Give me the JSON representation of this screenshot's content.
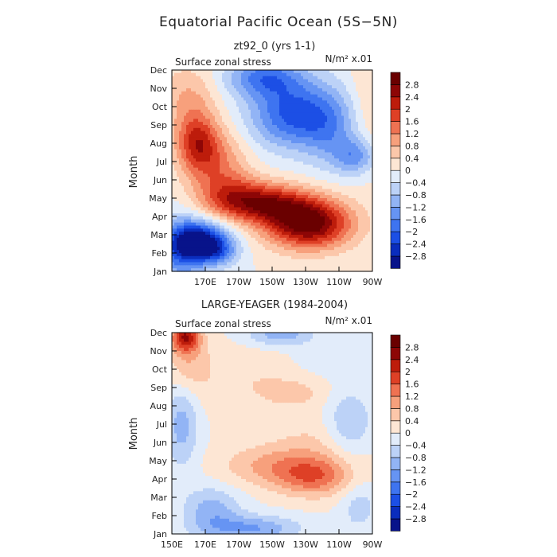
{
  "figure": {
    "title": "Equatorial Pacific Ocean (5S−5N)"
  },
  "chart_data": [
    {
      "type": "heatmap",
      "panel_title": "zt92_0 (yrs 1-1)",
      "variable_label": "Surface zonal stress",
      "units_label": "N/m² x.01",
      "ylabel": "Month",
      "xlim": [
        150,
        270
      ],
      "ylim": [
        1,
        12
      ],
      "x_ticks": [
        {
          "value": 170,
          "label": "170E"
        },
        {
          "value": 190,
          "label": "170W"
        },
        {
          "value": 210,
          "label": "150W"
        },
        {
          "value": 230,
          "label": "130W"
        },
        {
          "value": 250,
          "label": "110W"
        },
        {
          "value": 270,
          "label": "90W"
        }
      ],
      "y_ticks": [
        "Jan",
        "Feb",
        "Mar",
        "Apr",
        "May",
        "Jun",
        "Jul",
        "Aug",
        "Sep",
        "Oct",
        "Nov",
        "Dec"
      ],
      "features": [
        {
          "lon": 168,
          "month": 2.6,
          "amp": -3.0,
          "sx": 12,
          "sy": 0.75
        },
        {
          "lon": 155,
          "month": 2.2,
          "amp": -1.6,
          "sx": 10,
          "sy": 1.2
        },
        {
          "lon": 178,
          "month": 2.0,
          "amp": -0.9,
          "sx": 8,
          "sy": 0.5
        },
        {
          "lon": 232,
          "month": 3.6,
          "amp": 3.1,
          "sx": 18,
          "sy": 0.95
        },
        {
          "lon": 206,
          "month": 4.7,
          "amp": 2.2,
          "sx": 18,
          "sy": 0.75
        },
        {
          "lon": 184,
          "month": 5.2,
          "amp": 1.3,
          "sx": 14,
          "sy": 0.9
        },
        {
          "lon": 165,
          "month": 8.0,
          "amp": 1.9,
          "sx": 9,
          "sy": 1.15
        },
        {
          "lon": 178,
          "month": 7.1,
          "amp": 1.0,
          "sx": 12,
          "sy": 1.2
        },
        {
          "lon": 160,
          "month": 10.5,
          "amp": 0.8,
          "sx": 12,
          "sy": 1.3
        },
        {
          "lon": 222,
          "month": 9.6,
          "amp": -2.1,
          "sx": 18,
          "sy": 1.3
        },
        {
          "lon": 205,
          "month": 11.6,
          "amp": -1.6,
          "sx": 16,
          "sy": 0.75
        },
        {
          "lon": 260,
          "month": 7.3,
          "amp": -1.3,
          "sx": 9,
          "sy": 0.7
        },
        {
          "lon": 245,
          "month": 8.8,
          "amp": -1.0,
          "sx": 12,
          "sy": 1.5
        },
        {
          "lon": 268,
          "month": 10.5,
          "amp": 0.45,
          "sx": 8,
          "sy": 2.5
        }
      ]
    },
    {
      "type": "heatmap",
      "panel_title": "LARGE-YEAGER (1984-2004)",
      "variable_label": "Surface zonal stress",
      "units_label": "N/m² x.01",
      "ylabel": "Month",
      "xlim": [
        150,
        270
      ],
      "ylim": [
        1,
        12
      ],
      "x_ticks": [
        {
          "value": 150,
          "label": "150E"
        },
        {
          "value": 170,
          "label": "170E"
        },
        {
          "value": 190,
          "label": "170W"
        },
        {
          "value": 210,
          "label": "150W"
        },
        {
          "value": 230,
          "label": "130W"
        },
        {
          "value": 250,
          "label": "110W"
        },
        {
          "value": 270,
          "label": "90W"
        }
      ],
      "y_ticks": [
        "Jan",
        "Feb",
        "Mar",
        "Apr",
        "May",
        "Jun",
        "Jul",
        "Aug",
        "Sep",
        "Oct",
        "Nov",
        "Dec"
      ],
      "features": [
        {
          "lon": 158,
          "month": 11.8,
          "amp": 2.2,
          "sx": 6,
          "sy": 0.6
        },
        {
          "lon": 160,
          "month": 10.3,
          "amp": 0.7,
          "sx": 9,
          "sy": 1.2
        },
        {
          "lon": 236,
          "month": 4.1,
          "amp": 1.3,
          "sx": 16,
          "sy": 0.75
        },
        {
          "lon": 212,
          "month": 4.7,
          "amp": 0.9,
          "sx": 22,
          "sy": 0.8
        },
        {
          "lon": 240,
          "month": 6.0,
          "amp": 0.4,
          "sx": 20,
          "sy": 1.0
        },
        {
          "lon": 205,
          "month": 9.3,
          "amp": 0.4,
          "sx": 28,
          "sy": 1.4
        },
        {
          "lon": 225,
          "month": 8.7,
          "amp": 0.3,
          "sx": 12,
          "sy": 0.5
        },
        {
          "lon": 156,
          "month": 7.0,
          "amp": -1.0,
          "sx": 7,
          "sy": 1.7
        },
        {
          "lon": 174,
          "month": 2.3,
          "amp": -1.0,
          "sx": 12,
          "sy": 0.9
        },
        {
          "lon": 198,
          "month": 1.3,
          "amp": -1.2,
          "sx": 20,
          "sy": 0.5
        },
        {
          "lon": 215,
          "month": 11.9,
          "amp": -1.1,
          "sx": 14,
          "sy": 0.45
        },
        {
          "lon": 256,
          "month": 7.0,
          "amp": -0.9,
          "sx": 10,
          "sy": 1.3
        },
        {
          "lon": 262,
          "month": 2.5,
          "amp": -0.6,
          "sx": 8,
          "sy": 1.0
        },
        {
          "lon": 240,
          "month": 10.4,
          "amp": -0.35,
          "sx": 18,
          "sy": 0.7
        }
      ]
    }
  ],
  "colorbar": {
    "levels": [
      -2.8,
      -2.4,
      -2,
      -1.6,
      -1.2,
      -0.8,
      -0.4,
      0,
      0.4,
      0.8,
      1.2,
      1.6,
      2,
      2.4,
      2.8
    ],
    "level_labels": [
      "−2.8",
      "−2.4",
      "−2",
      "−1.6",
      "−1.2",
      "−0.8",
      "−0.4",
      "0",
      "0.4",
      "0.8",
      "1.2",
      "1.6",
      "2",
      "2.4",
      "2.8"
    ],
    "colors": [
      "#08138a",
      "#0a2dbd",
      "#1c4fe5",
      "#3e74f0",
      "#6694f3",
      "#92b4f5",
      "#bcd2f7",
      "#e2ecfa",
      "#fde6d4",
      "#fcc7aa",
      "#f7a07c",
      "#ef7252",
      "#de4026",
      "#bd1c0b",
      "#8d0606",
      "#6a0000"
    ]
  }
}
